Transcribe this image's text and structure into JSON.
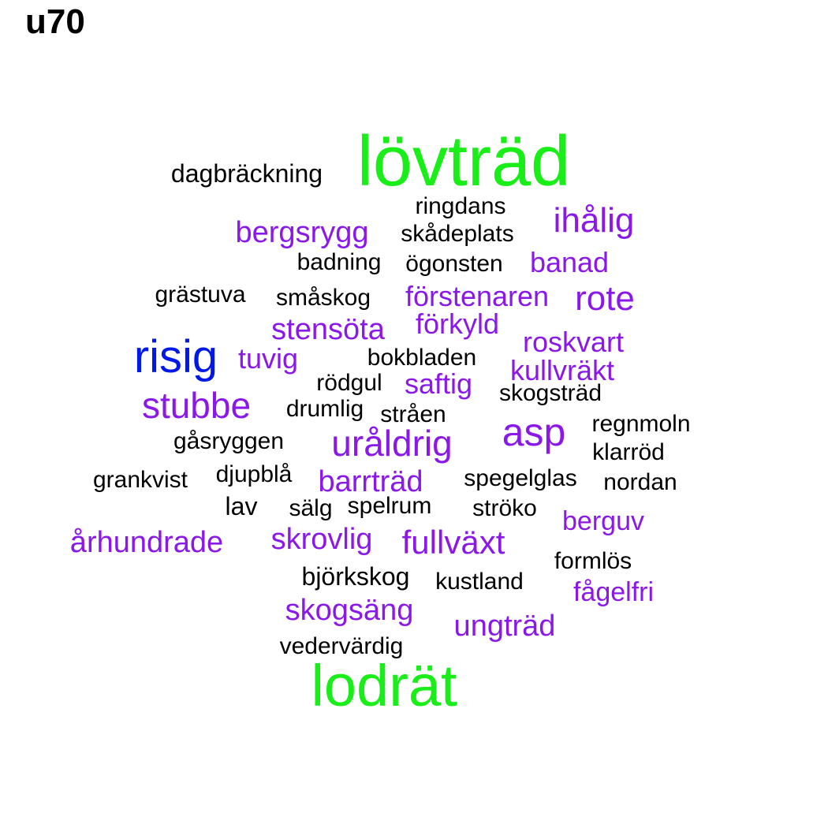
{
  "title": "u70",
  "colors": {
    "tier1": "#19ee19",
    "tier2": "#0018e8",
    "tier3": "#8a18e8",
    "tier4": "#000000"
  },
  "words": [
    {
      "text": "lövträd",
      "tier": 1
    },
    {
      "text": "lodrät",
      "tier": 1
    },
    {
      "text": "risig",
      "tier": 2
    },
    {
      "text": "asp",
      "tier": 3
    },
    {
      "text": "uråldrig",
      "tier": 3
    },
    {
      "text": "stubbe",
      "tier": 3
    },
    {
      "text": "ihålig",
      "tier": 3
    },
    {
      "text": "rote",
      "tier": 3
    },
    {
      "text": "fullväxt",
      "tier": 3
    },
    {
      "text": "barrträd",
      "tier": 3
    },
    {
      "text": "bergsrygg",
      "tier": 3
    },
    {
      "text": "stensöta",
      "tier": 3
    },
    {
      "text": "skogsäng",
      "tier": 3
    },
    {
      "text": "ungträd",
      "tier": 3
    },
    {
      "text": "århundrade",
      "tier": 3
    },
    {
      "text": "skrovlig",
      "tier": 3
    },
    {
      "text": "förstenaren",
      "tier": 3
    },
    {
      "text": "roskvart",
      "tier": 3
    },
    {
      "text": "kullvräkt",
      "tier": 3
    },
    {
      "text": "banad",
      "tier": 3
    },
    {
      "text": "förkyld",
      "tier": 3
    },
    {
      "text": "saftig",
      "tier": 3
    },
    {
      "text": "tuvig",
      "tier": 3
    },
    {
      "text": "berguv",
      "tier": 3
    },
    {
      "text": "fågelfri",
      "tier": 3
    },
    {
      "text": "dagbräckning",
      "tier": 4
    },
    {
      "text": "ringdans",
      "tier": 4
    },
    {
      "text": "skådeplats",
      "tier": 4
    },
    {
      "text": "badning",
      "tier": 4
    },
    {
      "text": "ögonsten",
      "tier": 4
    },
    {
      "text": "grästuva",
      "tier": 4
    },
    {
      "text": "småskog",
      "tier": 4
    },
    {
      "text": "bokbladen",
      "tier": 4
    },
    {
      "text": "rödgul",
      "tier": 4
    },
    {
      "text": "skogsträd",
      "tier": 4
    },
    {
      "text": "drumlig",
      "tier": 4
    },
    {
      "text": "stråen",
      "tier": 4
    },
    {
      "text": "regnmoln",
      "tier": 4
    },
    {
      "text": "gåsryggen",
      "tier": 4
    },
    {
      "text": "klarröd",
      "tier": 4
    },
    {
      "text": "grankvist",
      "tier": 4
    },
    {
      "text": "djupblå",
      "tier": 4
    },
    {
      "text": "spegelglas",
      "tier": 4
    },
    {
      "text": "nordan",
      "tier": 4
    },
    {
      "text": "lav",
      "tier": 4
    },
    {
      "text": "sälg",
      "tier": 4
    },
    {
      "text": "spelrum",
      "tier": 4
    },
    {
      "text": "ströko",
      "tier": 4
    },
    {
      "text": "formlös",
      "tier": 4
    },
    {
      "text": "björkskog",
      "tier": 4
    },
    {
      "text": "kustland",
      "tier": 4
    },
    {
      "text": "vedervärdig",
      "tier": 4
    }
  ]
}
